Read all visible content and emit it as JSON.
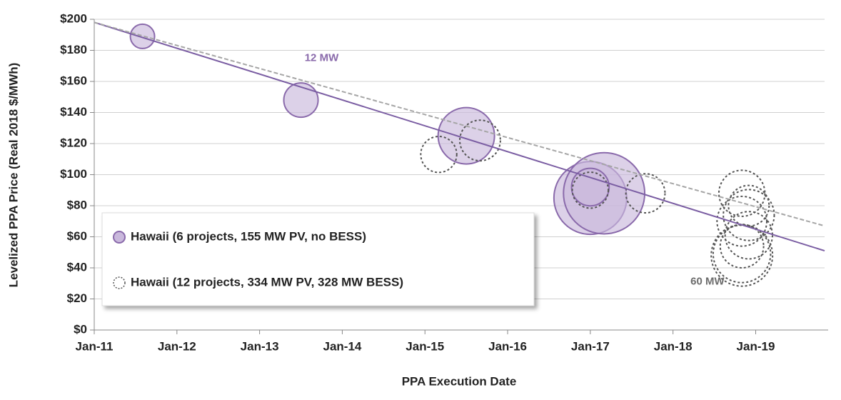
{
  "chart_data": {
    "type": "bubble",
    "y_label": "Levelized PPA Price (Real 2018 $/MWh)",
    "x_label": "PPA Execution Date",
    "xlim": [
      "2011-01",
      "2019-11"
    ],
    "xticks": [
      {
        "value": "2011-01",
        "label": "Jan-11"
      },
      {
        "value": "2012-01",
        "label": "Jan-12"
      },
      {
        "value": "2013-01",
        "label": "Jan-13"
      },
      {
        "value": "2014-01",
        "label": "Jan-14"
      },
      {
        "value": "2015-01",
        "label": "Jan-15"
      },
      {
        "value": "2016-01",
        "label": "Jan-16"
      },
      {
        "value": "2017-01",
        "label": "Jan-17"
      },
      {
        "value": "2018-01",
        "label": "Jan-18"
      },
      {
        "value": "2019-01",
        "label": "Jan-19"
      }
    ],
    "ylim": [
      0,
      200
    ],
    "yticks": [
      {
        "value": 0,
        "label": "$0"
      },
      {
        "value": 20,
        "label": "$20"
      },
      {
        "value": 40,
        "label": "$40"
      },
      {
        "value": 60,
        "label": "$60"
      },
      {
        "value": 80,
        "label": "$80"
      },
      {
        "value": 100,
        "label": "$100"
      },
      {
        "value": 120,
        "label": "$120"
      },
      {
        "value": 140,
        "label": "$140"
      },
      {
        "value": 160,
        "label": "$160"
      },
      {
        "value": 180,
        "label": "$180"
      },
      {
        "value": 200,
        "label": "$200"
      }
    ],
    "grid": true,
    "legend": "lower left",
    "series": [
      {
        "name": "Hawaii (6 projects, 155 MW PV, no BESS)",
        "color": "#8a6aab",
        "style": "filled",
        "x": [
          "2011-08",
          "2013-07",
          "2015-07",
          "2017-01",
          "2017-03",
          "2017-01"
        ],
        "values": [
          189,
          148,
          125,
          85,
          88,
          92
        ],
        "sizes": [
          5,
          10,
          27,
          45,
          56,
          12
        ]
      },
      {
        "name": "Hawaii (12 projects, 334 MW PV, 328 MW BESS)",
        "color": "#555555",
        "style": "dashed",
        "x": [
          "2015-03",
          "2015-09",
          "2017-01",
          "2017-09",
          "2018-11",
          "2018-12",
          "2018-11",
          "2018-12",
          "2018-11",
          "2018-11",
          "2018-11",
          "2018-12"
        ],
        "values": [
          113,
          122,
          90,
          88,
          88,
          80,
          70,
          61,
          54,
          49,
          48,
          74
        ],
        "sizes": [
          11,
          14,
          11,
          13,
          18,
          14,
          21,
          19,
          16,
          28,
          32,
          22
        ]
      }
    ],
    "trendlines": [
      {
        "color": "#7b5ea3",
        "style": "solid",
        "x": [
          "2011-01",
          "2019-11"
        ],
        "values": [
          198,
          51
        ]
      },
      {
        "color": "#a6a6a6",
        "style": "dashed",
        "x": [
          "2011-01",
          "2019-11"
        ],
        "values": [
          198,
          67
        ]
      }
    ],
    "annotations": [
      {
        "text": "12 MW",
        "x": "2013-10",
        "y": 175,
        "color": "#8a6aab"
      },
      {
        "text": "60 MW",
        "x": "2018-06",
        "y": 31,
        "color": "#6d6d6d"
      }
    ]
  }
}
